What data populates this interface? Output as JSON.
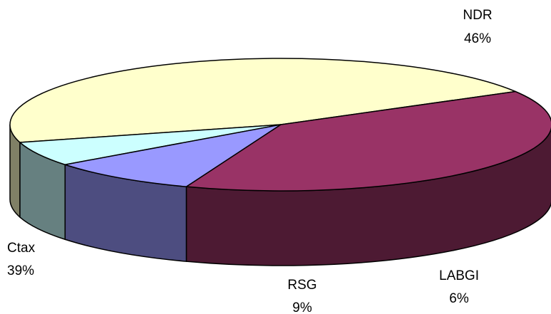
{
  "chart_data": {
    "type": "pie",
    "style": "3d-exploded-none",
    "slices": [
      {
        "name": "NDR",
        "percent_label": "46%",
        "value": 46,
        "color": "#FFFFCC",
        "side_color": "#808066"
      },
      {
        "name": "LABGI",
        "percent_label": "6%",
        "value": 6,
        "color": "#CCFFFF",
        "side_color": "#668080"
      },
      {
        "name": "RSG",
        "percent_label": "9%",
        "value": 9,
        "color": "#9999FF",
        "side_color": "#4D4D80"
      },
      {
        "name": "Ctax",
        "percent_label": "39%",
        "value": 39,
        "color": "#993366",
        "side_color": "#4D1A33"
      }
    ]
  }
}
